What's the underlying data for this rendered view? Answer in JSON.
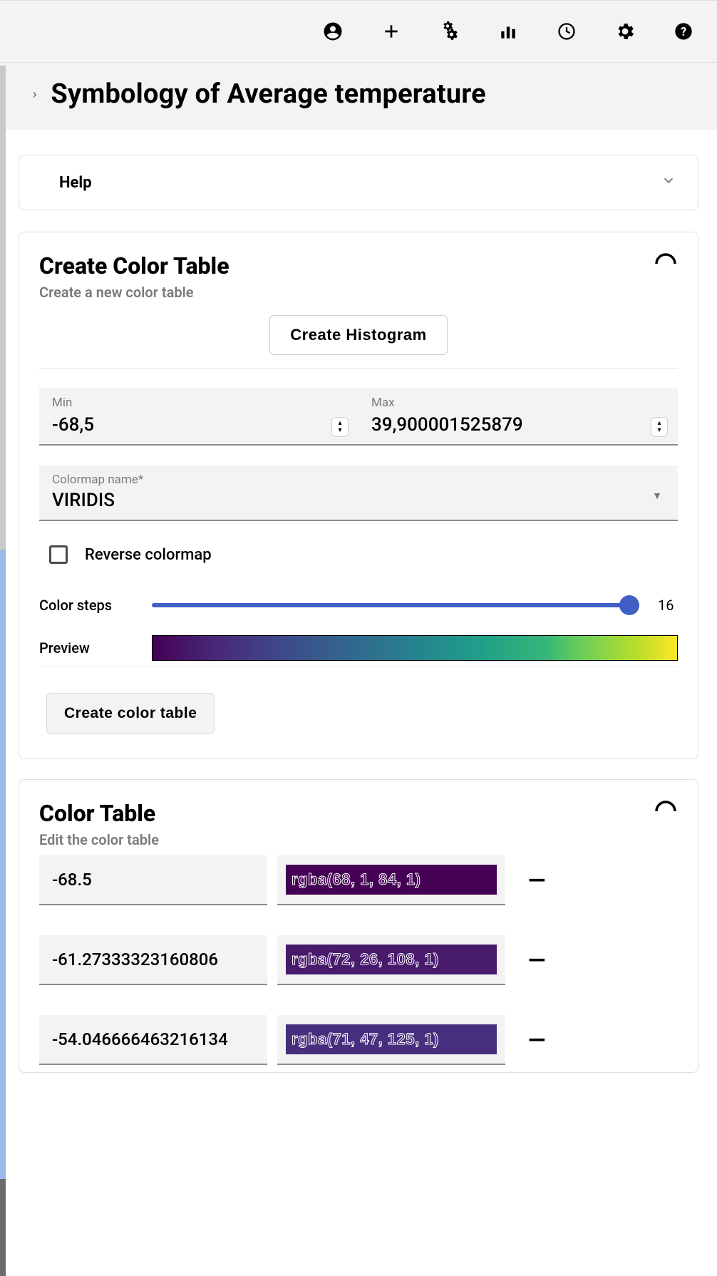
{
  "topbar": {
    "icons": [
      "account",
      "add",
      "tools",
      "chart",
      "history",
      "settings",
      "help"
    ]
  },
  "title": "Symbology of Average temperature",
  "help": {
    "label": "Help"
  },
  "create_panel": {
    "title": "Create Color Table",
    "subtitle": "Create a new color table",
    "histogram_button": "Create Histogram",
    "min_label": "Min",
    "min_value": "-68,5",
    "max_label": "Max",
    "max_value": "39,900001525879",
    "colormap_label": "Colormap name*",
    "colormap_value": "VIRIDIS",
    "reverse_label": "Reverse colormap",
    "steps_label": "Color steps",
    "steps_value": "16",
    "preview_label": "Preview",
    "preview_gradient": "linear-gradient(to right, #440154 0%, #482878 12%, #3e4a89 25%, #31688e 38%, #26828e 50%, #1f9e89 62%, #35b779 75%, #6ece58 82%, #b5de2b 92%, #fde725 100%)",
    "create_button": "Create color table"
  },
  "table_panel": {
    "title": "Color Table",
    "subtitle": "Edit the color table",
    "rows": [
      {
        "value": "-68.5",
        "label": "rgba(68, 1, 84, 1)",
        "color": "#440154"
      },
      {
        "value": "-61.27333323160806",
        "label": "rgba(72, 26, 108, 1)",
        "color": "#481a6c"
      },
      {
        "value": "-54.046666463216134",
        "label": "rgba(71, 47, 125, 1)",
        "color": "#472f7d"
      }
    ]
  }
}
